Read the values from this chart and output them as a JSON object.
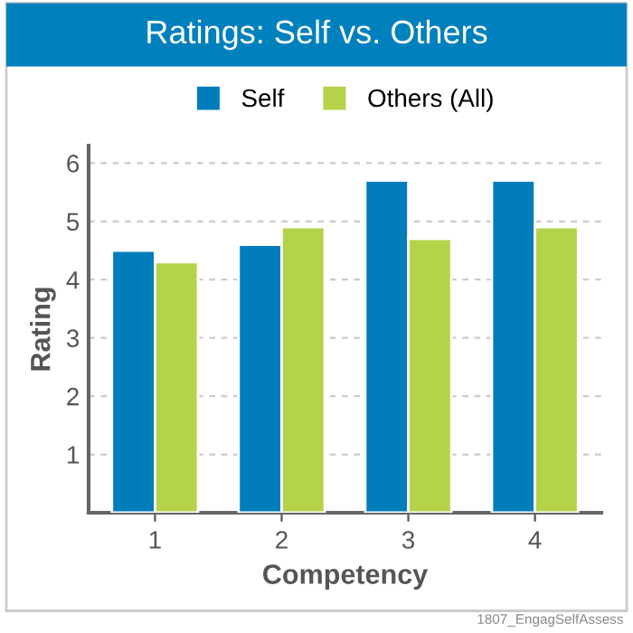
{
  "chart_data": {
    "type": "bar",
    "title": "Ratings: Self vs. Others",
    "xlabel": "Competency",
    "ylabel": "Rating",
    "categories": [
      "1",
      "2",
      "3",
      "4"
    ],
    "series": [
      {
        "name": "Self",
        "color": "#007dba",
        "values": [
          4.5,
          4.6,
          5.7,
          5.7
        ]
      },
      {
        "name": "Others (All)",
        "color": "#b5d24b",
        "values": [
          4.3,
          4.9,
          4.7,
          4.9
        ]
      }
    ],
    "ylim": [
      0,
      6.3
    ],
    "yticks": [
      1,
      2,
      3,
      4,
      5,
      6
    ],
    "grid": "y",
    "legend": "top",
    "annotations": [
      "1807_EngagSelfAssess"
    ]
  }
}
